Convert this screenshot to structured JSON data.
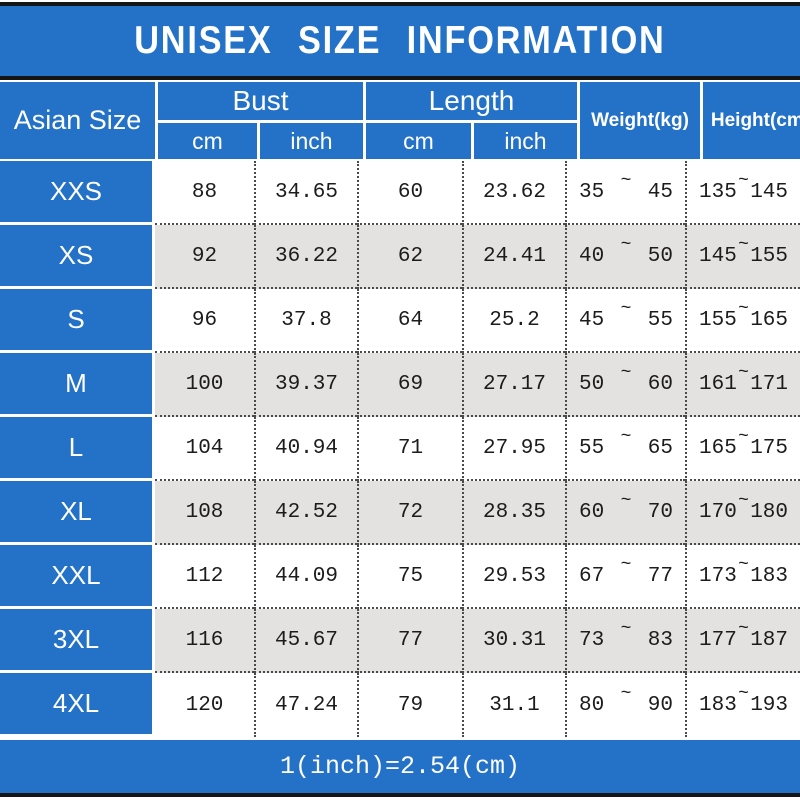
{
  "title": "UNISEX SIZE INFORMATION",
  "header": {
    "size_col": "Asian Size",
    "bust_label": "Bust",
    "length_label": "Length",
    "bust_cm": "cm",
    "bust_inch": "inch",
    "length_cm": "cm",
    "length_inch": "inch",
    "weight_label": "Weight(kg)",
    "height_label": "Height(cm)"
  },
  "tilde": "~",
  "rows": [
    {
      "size": "XXS",
      "bust_cm": "88",
      "bust_inch": "34.65",
      "len_cm": "60",
      "len_inch": "23.62",
      "w_min": "35",
      "w_max": "45",
      "h_min": "135",
      "h_max": "145"
    },
    {
      "size": "XS",
      "bust_cm": "92",
      "bust_inch": "36.22",
      "len_cm": "62",
      "len_inch": "24.41",
      "w_min": "40",
      "w_max": "50",
      "h_min": "145",
      "h_max": "155"
    },
    {
      "size": "S",
      "bust_cm": "96",
      "bust_inch": "37.8",
      "len_cm": "64",
      "len_inch": "25.2",
      "w_min": "45",
      "w_max": "55",
      "h_min": "155",
      "h_max": "165"
    },
    {
      "size": "M",
      "bust_cm": "100",
      "bust_inch": "39.37",
      "len_cm": "69",
      "len_inch": "27.17",
      "w_min": "50",
      "w_max": "60",
      "h_min": "161",
      "h_max": "171"
    },
    {
      "size": "L",
      "bust_cm": "104",
      "bust_inch": "40.94",
      "len_cm": "71",
      "len_inch": "27.95",
      "w_min": "55",
      "w_max": "65",
      "h_min": "165",
      "h_max": "175"
    },
    {
      "size": "XL",
      "bust_cm": "108",
      "bust_inch": "42.52",
      "len_cm": "72",
      "len_inch": "28.35",
      "w_min": "60",
      "w_max": "70",
      "h_min": "170",
      "h_max": "180"
    },
    {
      "size": "XXL",
      "bust_cm": "112",
      "bust_inch": "44.09",
      "len_cm": "75",
      "len_inch": "29.53",
      "w_min": "67",
      "w_max": "77",
      "h_min": "173",
      "h_max": "183"
    },
    {
      "size": "3XL",
      "bust_cm": "116",
      "bust_inch": "45.67",
      "len_cm": "77",
      "len_inch": "30.31",
      "w_min": "73",
      "w_max": "83",
      "h_min": "177",
      "h_max": "187"
    },
    {
      "size": "4XL",
      "bust_cm": "120",
      "bust_inch": "47.24",
      "len_cm": "79",
      "len_inch": "31.1",
      "w_min": "80",
      "w_max": "90",
      "h_min": "183",
      "h_max": "193"
    }
  ],
  "footer": "1(inch)=2.54(cm)",
  "colors": {
    "blue": "#2472c8",
    "grey_row": "#e3e2e0",
    "line_black": "#151515"
  }
}
